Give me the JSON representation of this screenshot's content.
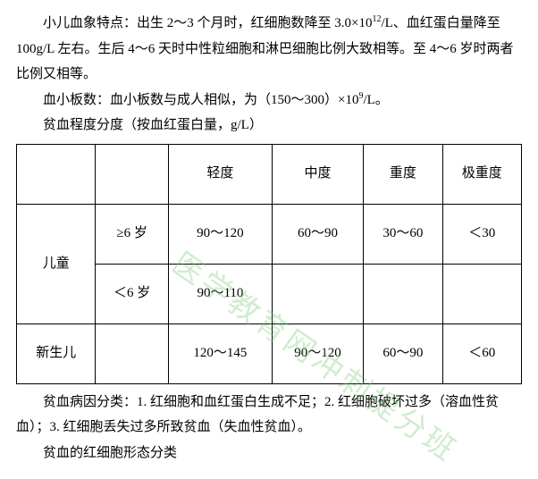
{
  "para1": "小儿血象特点：出生 2～3 个月时，红细胞数降至 3.0×10",
  "para1_sup": "12",
  "para1_after": "/L、血红蛋白量降至 100g/L 左右。生后 4～6 天时中性粒细胞和淋巴细胞比例大致相等。至 4～6 岁时两者比例又相等。",
  "para2": "血小板数：血小板数与成人相似，为（150～300）×10",
  "para2_sup": "9",
  "para2_after": "/L。",
  "para3": "贫血程度分度（按血红蛋白量，g/L）",
  "headers": {
    "mild": "轻度",
    "moderate": "中度",
    "severe": "重度",
    "very_severe": "极重度"
  },
  "row_child": {
    "label": "儿童",
    "age1": "≥6 岁",
    "v1": "90～120",
    "v2": "60～90",
    "v3": "30～60",
    "v4": "＜30",
    "age2": "＜6 岁",
    "v5": "90～110"
  },
  "row_newborn": {
    "label": "新生儿",
    "v1": "120～145",
    "v2": "90～120",
    "v3": "60～90",
    "v4": "＜60"
  },
  "para4": "贫血病因分类：1. 红细胞和血红蛋白生成不足；2. 红细胞破坏过多（溶血性贫血）；3. 红细胞丢失过多所致贫血（失血性贫血）。",
  "para5": "贫血的红细胞形态分类",
  "watermark": "医学教育网冲刺提分班"
}
